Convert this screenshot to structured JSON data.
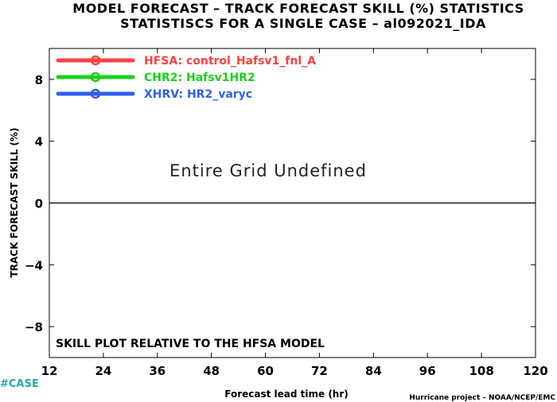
{
  "chart_data": {
    "type": "line",
    "title": "MODEL FORECAST – TRACK FORECAST SKILL (%) STATISTICS",
    "subtitle": "STATISTISCS FOR A SINGLE CASE – al092021_IDA",
    "xlabel": "Forecast lead time (hr)",
    "ylabel": "TRACK FORECAST SKILL (%)",
    "xlim": [
      12,
      120
    ],
    "ylim": [
      -10,
      10
    ],
    "x_ticks": [
      12,
      24,
      36,
      48,
      60,
      72,
      84,
      96,
      108,
      120
    ],
    "y_ticks": [
      -8,
      -4,
      0,
      4,
      8
    ],
    "grid": false,
    "legend_position": "top-left",
    "series": [
      {
        "name": "HFSA: control_Hafsv1_fnl_A",
        "color": "#ff4040",
        "values": []
      },
      {
        "name": "CHR2: Hafsv1HR2",
        "color": "#19d219",
        "values": []
      },
      {
        "name": "XHRV: HR2_varyc",
        "color": "#2f5ff0",
        "values": []
      }
    ],
    "annotations": [
      "Entire Grid Undefined",
      "SKILL PLOT RELATIVE TO THE HFSA MODEL"
    ]
  },
  "footer": {
    "credit": "Hurricane project – NOAA/NCEP/EMC",
    "case_tag": "#CASE"
  }
}
